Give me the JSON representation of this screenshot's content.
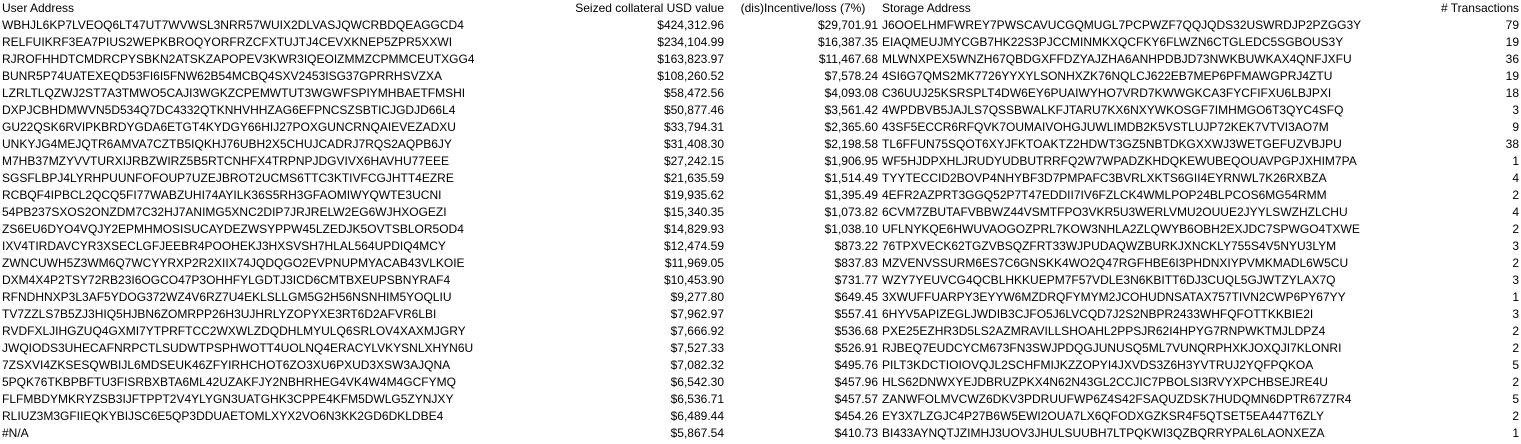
{
  "table": {
    "headers": {
      "user_address": "User Address",
      "seized_collateral": "Seized collateral USD value",
      "incentive": "(dis)Incentive/loss (7%)",
      "storage_address": "Storage Address",
      "transactions": "# Transactions"
    },
    "rows": [
      {
        "user": "WBHJL6KP7LVEOQ6LT47UT7WVWSL3NRR57WUIX2DLVASJQWCRBDQEAGGCD4",
        "seized": "$424,312.96",
        "incentive": "$29,701.91",
        "storage": "J6OOELHMFWREY7PWSCAVUCGQMUGL7PCPWZF7QQJQDS32USWRDJP2PZGG3Y",
        "tx": "79"
      },
      {
        "user": "RELFUIKRF3EA7PIUS2WEPKBROQYORFRZCFXTUJTJ4CEVXKNEP5ZPR5XXWI",
        "seized": "$234,104.99",
        "incentive": "$16,387.35",
        "storage": "EIAQMEUJMYCGB7HK22S3PJCCMINMKXQCFKY6FLWZN6CTGLEDC5SGBOUS3Y",
        "tx": "19"
      },
      {
        "user": "RJROFHHDTCMDRCPYSBKN2ATSKZAPOPEV3KWR3IQEOIZMMZCPMMCEUTXGG4",
        "seized": "$163,823.97",
        "incentive": "$11,467.68",
        "storage": "MLWNXPEX5WNZH67QBDGXFFDZYAJZHA6ANHPDBJD73NWKBUWKAX4QNFJXFU",
        "tx": "36"
      },
      {
        "user": "BUNR5P74UATEXEQD53FI6I5FNW62B54MCBQ4SXV2453ISG37GPRRHSVZXA",
        "seized": "$108,260.52",
        "incentive": "$7,578.24",
        "storage": "4SI6G7QMS2MK7726YYXYLSONHXZK76NQLCJ622EB7MEP6PFMAWGPRJ4ZTU",
        "tx": "19"
      },
      {
        "user": "LZRLTLQZWJ2ST7A3TMWO5CAJI3WGKZCPEMWTUT3WGWFSPIYMHBAETFMSHI",
        "seized": "$58,472.56",
        "incentive": "$4,093.08",
        "storage": "C36UUJ25KSRSPLT4DW6EY6PUAIWYHO7VRD7KWWGKCA3FYCFIFXU6LBJPXI",
        "tx": "18"
      },
      {
        "user": "DXPJCBHDMWVN5D534Q7DC4332QTKNHVHHZAG6EFPNCSZSBTICJGDJD66L4",
        "seized": "$50,877.46",
        "incentive": "$3,561.42",
        "storage": "4WPDBVB5JAJLS7QSSBWALKFJTARU7KX6NXYWKOSGF7IMHMGO6T3QYC4SFQ",
        "tx": "3"
      },
      {
        "user": "GU22QSK6RVIPKBRDYGDA6ETGT4KYDGY66HIJ27POXGUNCRNQAIEVEZADXU",
        "seized": "$33,794.31",
        "incentive": "$2,365.60",
        "storage": "43SF5ECCR6RFQVK7OUMAIVOHGJUWLIMDB2K5VSTLUJP72KEK7VTVI3AO7M",
        "tx": "9"
      },
      {
        "user": "UNKYJG4MEJQTR6AMVA7CZTB5IQKHJ76UBH2X5CHUJCADRJ7RQS2AQPB6JY",
        "seized": "$31,408.30",
        "incentive": "$2,198.58",
        "storage": "TL6FFUN75SQOT6XYJFKTOAKTZ2HDWT3GZ5NBTDKGXXWJ3WETGEFUZVBJPU",
        "tx": "38"
      },
      {
        "user": "M7HB37MZYVVTURXIJRBZWIRZ5B5RTCNHFX4TRPNPJDGVIVX6HAVHU77EEE",
        "seized": "$27,242.15",
        "incentive": "$1,906.95",
        "storage": "WF5HJDPXHLJRUDYUDBUTRRFQ2W7WPADZKHDQKEWUBEQOUAVPGPJXHIM7PA",
        "tx": "1"
      },
      {
        "user": "SGSFLBPJ4LYRHPUUNFOFOUP7UZEJBROT2UCMS6TTC3KTIVFCGJHTT4EZRE",
        "seized": "$21,635.59",
        "incentive": "$1,514.49",
        "storage": "TYYTECCID2BOVP4NHYBF3D7PMPAFC3BVRLXKTS6GII4EYRNWL7K26RXBZA",
        "tx": "4"
      },
      {
        "user": "RCBQF4IPBCL2QCQ5FI77WABZUHI74AYILK36S5RH3GFAOMIWYQWTE3UCNI",
        "seized": "$19,935.62",
        "incentive": "$1,395.49",
        "storage": "4EFR2AZPRT3GGQ52P7T47EDDII7IV6FZLCK4WMLPOP24BLPCOS6MG54RMM",
        "tx": "2"
      },
      {
        "user": "54PB237SXOS2ONZDM7C32HJ7ANIMG5XNC2DIP7JRJRELW2EG6WJHXOGEZI",
        "seized": "$15,340.35",
        "incentive": "$1,073.82",
        "storage": "6CVM7ZBUTAFVBBWZ44VSMTFPO3VKR5U3WERLVMU2OUUE2JYYLSWZHZLCHU",
        "tx": "4"
      },
      {
        "user": "ZS6EU6DYO4VQJY2EPMHMOSISUCAYDEZWSYPPW45LZEDJK5OVTSBLOR5OD4",
        "seized": "$14,829.93",
        "incentive": "$1,038.10",
        "storage": "UFLNYKQE6HWUVAOGOZPRL7KOW3NHLA2ZLQWYB6OBH2EXJDC7SPWGO4TXWE",
        "tx": "2"
      },
      {
        "user": "IXV4TIRDAVCYR3XSECLGFJEEBR4POOHEKJ3HXSVSH7HLAL564UPDIQ4MCY",
        "seized": "$12,474.59",
        "incentive": "$873.22",
        "storage": "76TPXVECK62TGZVBSQZFRT33WJPUDAQWZBURKJXNCKLY755S4V5NYU3LYM",
        "tx": "3"
      },
      {
        "user": "ZWNCUWH5Z3WM6Q7WCYYRXP2R2XIIX74JQDQGO2EVPNUPMYACAB43VLKOIE",
        "seized": "$11,969.05",
        "incentive": "$837.83",
        "storage": "MZVENVSSURM6ES7C6GNSKK4WO2Q47RGFHBE6I3PHDNXIYPVMKMADL6W5CU",
        "tx": "2"
      },
      {
        "user": "DXM4X4P2TSY72RB23I6OGCO47P3OHHFYLGDTJ3ICD6CMTBXEUPSBNYRAF4",
        "seized": "$10,453.90",
        "incentive": "$731.77",
        "storage": "WZY7YEUVCG4QCBLHKKUEPM7F57VDLE3N6KBITT6DJ3CUQL5GJWTZYLAX7Q",
        "tx": "3"
      },
      {
        "user": "RFNDHNXP3L3AF5YDOG372WZ4V6RZ7U4EKLSLLGM5G2H56NSNHIM5YOQLIU",
        "seized": "$9,277.80",
        "incentive": "$649.45",
        "storage": "3XWUFFUARPY3EYYW6MZDRQFYMYM2JCOHUDNSATAX757TIVN2CWP6PY67YY",
        "tx": "1"
      },
      {
        "user": "TV7ZZLS7B5ZJ3HIQ5HJBN6ZOMRPP26H3UJHRLYZOPYXE3RT6D2AFVR6LBI",
        "seized": "$7,962.97",
        "incentive": "$557.41",
        "storage": "6HYV5APIZEGLJWDIB3CJFO5J6LVCQD7J2S2NBPR2433WHFQFOTTKKBIE2I",
        "tx": "3"
      },
      {
        "user": "RVDFXLJIHGZUQ4GXMI7YTPRFTCC2WXWLZDQDHLMYULQ6SRLOV4XAXMJGRY",
        "seized": "$7,666.92",
        "incentive": "$536.68",
        "storage": "PXE25EZHR3D5LS2AZMRAVILLSHOAHL2PPSJR62I4HPYG7RNPWKTMJLDPZ4",
        "tx": "2"
      },
      {
        "user": "JWQIODS3UHECAFNRPCTLSUDWTPSPHWOTT4UOLNQ4ERACYLVKYSNLXHYN6U",
        "seized": "$7,527.33",
        "incentive": "$526.91",
        "storage": "RJBEQ7EUDCYCM673FN3SWJPDQGJUNUSQ5ML7VUNQRPHXKJOXQJI7KLONRI",
        "tx": "2"
      },
      {
        "user": "7ZSXVI4ZKSESQWBIJL6MDSEUK46ZFYIRHCHOT6ZO3XU6PXUD3XSW3AJQNA",
        "seized": "$7,082.32",
        "incentive": "$495.76",
        "storage": "PILT3KDCTIOIOVQJL2SCHFMIJKZZOPYI4JXVDS3Z6H3YVTRUJ2YQFPQKOA",
        "tx": "5"
      },
      {
        "user": "5PQK76TKBPBFTU3FISRBXBTA6ML42UZAKFJY2NBHRHEG4VK4W4M4GCFYMQ",
        "seized": "$6,542.30",
        "incentive": "$457.96",
        "storage": "HLS62DNWXYEJDBRUZPKX4N62N43GL2CCJIC7PBOLSI3RVYXPCHBSEJRE4U",
        "tx": "2"
      },
      {
        "user": "FLFMBDYMKRYZSB3IJFTPPT2V4YLYGN3UATGHK3CPPE4KFM5DWLG5ZYNJXY",
        "seized": "$6,536.71",
        "incentive": "$457.57",
        "storage": "ZANWFOLMVCWZ6DKV3PDRUUFWP6Z4S42FSAQUZDSK7HUDQMN6DPTR67Z7R4",
        "tx": "5"
      },
      {
        "user": "RLIUZ3M3GFIIEQKYBIJSC6E5QP3DDUAETOMLXYX2VO6N3KK2GD6DKLDBE4",
        "seized": "$6,489.44",
        "incentive": "$454.26",
        "storage": "EY3X7LZGJC4P27B6W5EWI2OUA7LX6QFODXGZKSR4F5QTSET5EA447T6ZLY",
        "tx": "2"
      },
      {
        "user": "#N/A",
        "seized": "$5,867.54",
        "incentive": "$410.73",
        "storage": "BI433AYNQTJZIMHJ3UOV3JHULSUUBH7LTPQKWI3QZBQRRYPAL6LAONXEZA",
        "tx": "1"
      }
    ]
  }
}
